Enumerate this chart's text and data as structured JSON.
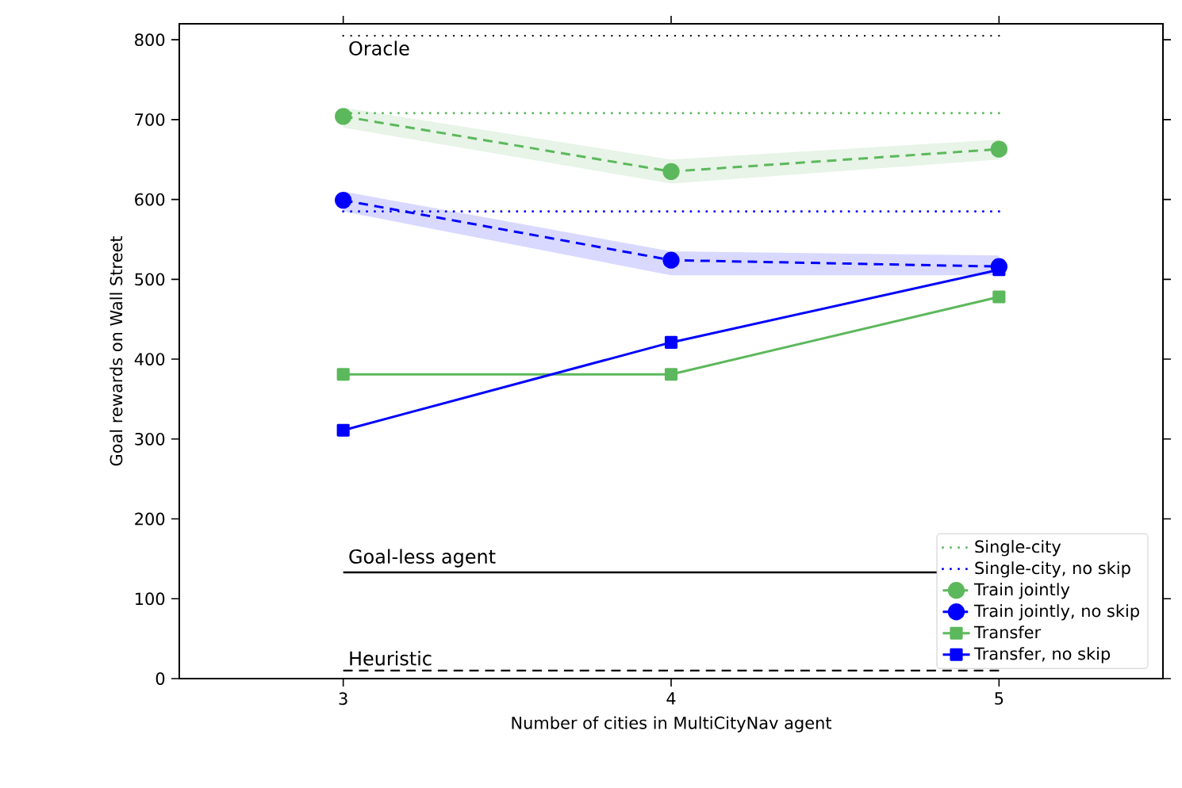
{
  "chart_data": {
    "type": "line",
    "xlabel": "Number of cities in MultiCityNav agent",
    "ylabel": "Goal rewards on Wall Street",
    "x": [
      3,
      4,
      5
    ],
    "xlim": [
      2.5,
      5.5
    ],
    "xticks": [
      3,
      4,
      5
    ],
    "ylim": [
      0,
      820
    ],
    "yticks": [
      0,
      100,
      200,
      300,
      400,
      500,
      600,
      700,
      800
    ],
    "grid": false,
    "legend": "bottom right",
    "series": [
      {
        "name": "Single-city",
        "color": "#5cb85c",
        "values": [
          708,
          708,
          708
        ],
        "line_style": "dotted",
        "marker": "none"
      },
      {
        "name": "Single-city, no skip",
        "color": "#0000ff",
        "values": [
          585,
          585,
          585
        ],
        "line_style": "dotted",
        "marker": "none"
      },
      {
        "name": "Train jointly",
        "color": "#5cb85c",
        "values": [
          704,
          635,
          663
        ],
        "lower": [
          690,
          620,
          650
        ],
        "upper": [
          715,
          650,
          675
        ],
        "line_style": "dashed",
        "marker": "circle"
      },
      {
        "name": "Train jointly, no skip",
        "color": "#0000ff",
        "values": [
          599,
          524,
          516
        ],
        "lower": [
          585,
          505,
          505
        ],
        "upper": [
          610,
          535,
          530
        ],
        "line_style": "dashed",
        "marker": "circle"
      },
      {
        "name": "Transfer",
        "color": "#5cb85c",
        "values": [
          381,
          381,
          478
        ],
        "line_style": "solid",
        "marker": "square"
      },
      {
        "name": "Transfer, no skip",
        "color": "#0000ff",
        "values": [
          311,
          421,
          512
        ],
        "line_style": "solid",
        "marker": "square"
      }
    ],
    "ref_lines": [
      {
        "axis": "y",
        "value": 805,
        "label": "Oracle",
        "color": "#000000",
        "line_style": "dotted"
      },
      {
        "axis": "y",
        "value": 133,
        "label": "Goal-less agent",
        "color": "#000000",
        "line_style": "solid"
      },
      {
        "axis": "y",
        "value": 10,
        "label": "Heuristic",
        "color": "#000000",
        "line_style": "dashed"
      }
    ]
  }
}
